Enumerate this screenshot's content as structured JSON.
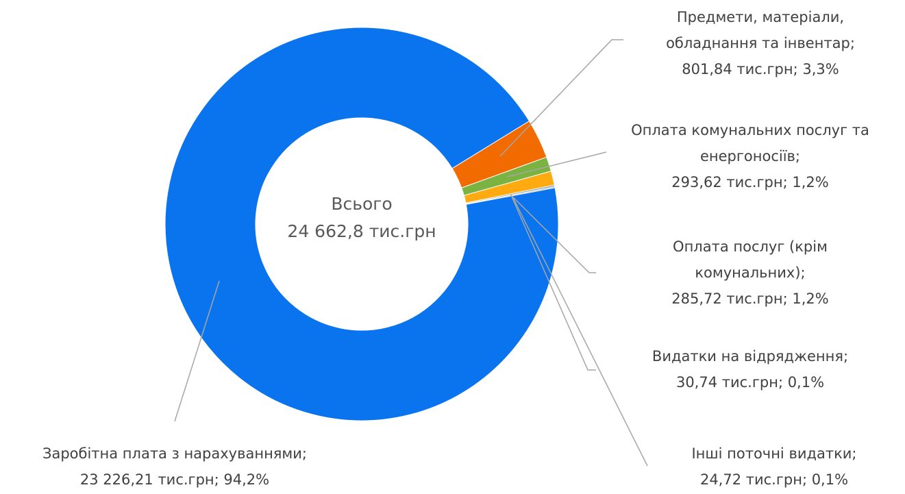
{
  "chart_data": {
    "type": "donut",
    "center_label": [
      "Всього",
      "24 662,8 тис.грн"
    ],
    "categories": [
      "Предмети, матеріали, обладнання та інвентар;",
      "Оплата комунальних послуг та енергоносіїв;",
      "Оплата послуг (крім комунальних);",
      "Видатки на відрядження;",
      "Інші поточні видатки;",
      "Заробітна плата з нарахуваннями;"
    ],
    "values": [
      801.84,
      293.62,
      285.72,
      30.74,
      24.72,
      23226.21
    ],
    "value_labels": [
      "801,84  тис.грн; 3,3%",
      "293,62  тис.грн; 1,2%",
      "285,72  тис.грн; 1,2%",
      "30,74  тис.грн; 0,1%",
      "24,72  тис.грн; 0,1%",
      "23 226,21  тис.грн; 94,2%"
    ],
    "colors": [
      "#f26b00",
      "#7bb343",
      "#ffaa10",
      "#5a8fb8",
      "#a5a5a5",
      "#0a73ee"
    ]
  }
}
